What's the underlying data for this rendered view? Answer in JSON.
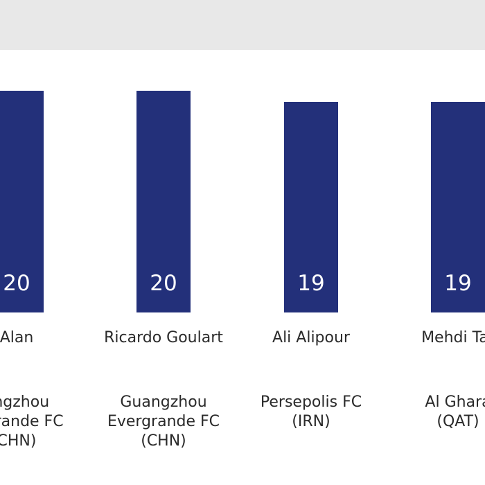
{
  "chart_data": {
    "type": "bar",
    "title": "",
    "xlabel": "",
    "ylabel": "",
    "categories": [
      "Alan",
      "Ricardo Goulart",
      "Ali Alipour",
      "Mehdi Tar"
    ],
    "values": [
      20,
      20,
      19,
      19
    ],
    "value_labels": [
      "20",
      "20",
      "19",
      "19"
    ],
    "clubs": [
      [
        "angzhou",
        "ergrande FC",
        "CHN)"
      ],
      [
        "Guangzhou",
        "Evergrande FC",
        "(CHN)"
      ],
      [
        "Persepolis FC",
        "(IRN)"
      ],
      [
        "Al Ghara",
        "(QAT)"
      ]
    ],
    "bar_color": "#23307a",
    "grid": false,
    "legend": "none"
  }
}
